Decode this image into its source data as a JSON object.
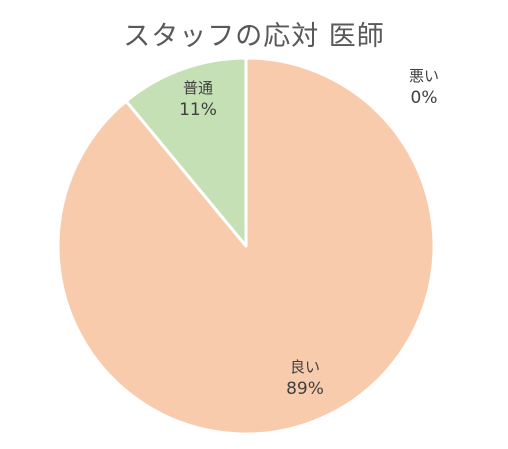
{
  "chart_data": {
    "type": "pie",
    "title": "スタッフの応対 医師",
    "categories": [
      "良い",
      "普通",
      "悪い"
    ],
    "values": [
      89,
      11,
      0
    ],
    "value_labels": [
      "89%",
      "11%",
      "0%"
    ],
    "colors": [
      "#F8CBAD",
      "#C5E0B4",
      "#F4B183"
    ],
    "legend": "none"
  }
}
